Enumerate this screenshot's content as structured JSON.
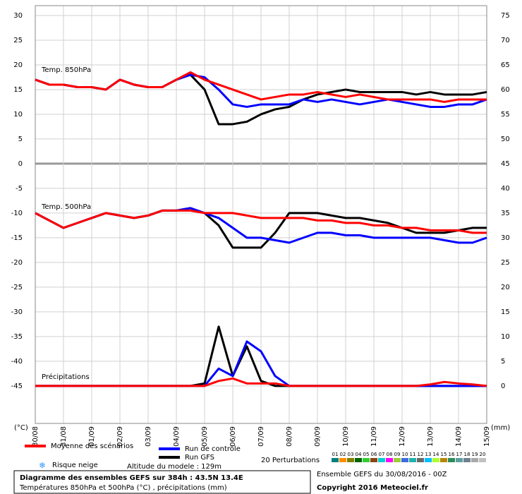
{
  "chart_data": {
    "type": "line",
    "annotations": {
      "panel_850": "Temp. 850hPa",
      "panel_500": "Temp. 500hPa",
      "panel_precip": "Précipitations",
      "y_unit": "(°C)",
      "y2_unit": "(mm)",
      "snow": "Risque neige",
      "altitude": "Altitude du modele : 129m"
    },
    "categories": [
      "30/08",
      "31/08",
      "01/09",
      "02/09",
      "03/09",
      "04/09",
      "05/09",
      "06/09",
      "07/09",
      "08/09",
      "09/09",
      "10/09",
      "11/09",
      "12/09",
      "13/09",
      "14/09",
      "15/09"
    ],
    "ylim": [
      -52.6,
      32
    ],
    "yticks": [
      30,
      25,
      20,
      15,
      10,
      5,
      0,
      -5,
      -10,
      -15,
      -20,
      -25,
      -30,
      -35,
      -40,
      -45
    ],
    "y2lim": [
      -7.6,
      77
    ],
    "y2ticks": [
      75,
      70,
      65,
      60,
      55,
      50,
      45,
      40,
      35,
      30,
      25,
      20,
      15,
      10,
      5,
      0
    ],
    "grid": true,
    "series": [
      {
        "name": "Moyenne des scénarios",
        "color": "#ff0000",
        "temp_850": [
          17,
          16,
          16,
          15.5,
          15.5,
          15,
          17,
          16,
          15.5,
          15.5,
          17,
          18.5,
          17,
          16,
          15,
          14,
          13,
          13.5,
          14,
          14,
          14.5,
          14,
          13.5,
          14,
          13.5,
          13,
          13,
          13,
          13,
          12.5,
          13,
          13,
          13
        ],
        "temp_500": [
          -10,
          -11.5,
          -13,
          -12,
          -11,
          -10,
          -10.5,
          -11,
          -10.5,
          -9.5,
          -9.5,
          -9.5,
          -10,
          -10,
          -10,
          -10.5,
          -11,
          -11,
          -11,
          -11,
          -11.5,
          -11.5,
          -12,
          -12,
          -12.5,
          -12.5,
          -13,
          -13,
          -13.5,
          -13.5,
          -13.5,
          -14,
          -14
        ],
        "precipitation": [
          0,
          0,
          0,
          0,
          0,
          0,
          0,
          0,
          0,
          0,
          0,
          0,
          0,
          1,
          1.5,
          0.5,
          0.5,
          0.5,
          0,
          0,
          0,
          0,
          0,
          0,
          0,
          0,
          0,
          0,
          0.3,
          0.8,
          0.5,
          0.3,
          0
        ]
      },
      {
        "name": "Run de contrôle",
        "color": "#0000ff",
        "temp_850": [
          17,
          16,
          16,
          15.5,
          15.5,
          15,
          17,
          16,
          15.5,
          15.5,
          17,
          18,
          17.5,
          15,
          12,
          11.5,
          12,
          12,
          12,
          13,
          12.5,
          13,
          12.5,
          12,
          12.5,
          13,
          12.5,
          12,
          11.5,
          11.5,
          12,
          12,
          13
        ],
        "temp_500": [
          -10,
          -11.5,
          -13,
          -12,
          -11,
          -10,
          -10.5,
          -11,
          -10.5,
          -9.5,
          -9.5,
          -9,
          -10,
          -11,
          -13,
          -15,
          -15,
          -15.5,
          -16,
          -15,
          -14,
          -14,
          -14.5,
          -14.5,
          -15,
          -15,
          -15,
          -15,
          -15,
          -15.5,
          -16,
          -16,
          -15
        ],
        "precipitation": [
          0,
          0,
          0,
          0,
          0,
          0,
          0,
          0,
          0,
          0,
          0,
          0,
          0,
          3.5,
          2,
          9,
          7,
          2,
          0,
          0,
          0,
          0,
          0,
          0,
          0,
          0,
          0,
          0,
          0,
          0,
          0,
          0,
          0
        ]
      },
      {
        "name": "Run GFS",
        "color": "#000000",
        "temp_850": [
          17,
          16,
          16,
          15.5,
          15.5,
          15,
          17,
          16,
          15.5,
          15.5,
          17,
          18,
          15,
          8,
          8,
          8.5,
          10,
          11,
          11.5,
          13,
          14,
          14.5,
          15,
          14.5,
          14.5,
          14.5,
          14.5,
          14,
          14.5,
          14,
          14,
          14,
          14.5
        ],
        "temp_500": [
          -10,
          -11.5,
          -13,
          -12,
          -11,
          -10,
          -10.5,
          -11,
          -10.5,
          -9.5,
          -9.5,
          -9,
          -10,
          -12.5,
          -17,
          -17,
          -17,
          -14,
          -10,
          -10,
          -10,
          -10.5,
          -11,
          -11,
          -11.5,
          -12,
          -13,
          -14,
          -14,
          -14,
          -13.5,
          -13,
          -13
        ],
        "precipitation": [
          0,
          0,
          0,
          0,
          0,
          0,
          0,
          0,
          0,
          0,
          0,
          0,
          0.5,
          12,
          2,
          8,
          1,
          0,
          0,
          0,
          0,
          0,
          0,
          0,
          0,
          0,
          0,
          0,
          0,
          0,
          0,
          0,
          0
        ]
      }
    ],
    "perturbations": {
      "label": "20 Perturbations",
      "members": [
        {
          "name": "01",
          "color": "#008080"
        },
        {
          "name": "02",
          "color": "#ff8c00"
        },
        {
          "name": "03",
          "color": "#808000"
        },
        {
          "name": "04",
          "color": "#006400"
        },
        {
          "name": "05",
          "color": "#32cd32"
        },
        {
          "name": "06",
          "color": "#8b4513"
        },
        {
          "name": "07",
          "color": "#00ced1"
        },
        {
          "name": "08",
          "color": "#ff00ff"
        },
        {
          "name": "09",
          "color": "#9acd32"
        },
        {
          "name": "10",
          "color": "#4169e1"
        },
        {
          "name": "11",
          "color": "#20b2aa"
        },
        {
          "name": "12",
          "color": "#696969"
        },
        {
          "name": "13",
          "color": "#00bfff"
        },
        {
          "name": "14",
          "color": "#adff2f"
        },
        {
          "name": "15",
          "color": "#b8860b"
        },
        {
          "name": "16",
          "color": "#2e8b57"
        },
        {
          "name": "17",
          "color": "#5f9ea0"
        },
        {
          "name": "18",
          "color": "#708090"
        },
        {
          "name": "19",
          "color": "#a9a9a9"
        },
        {
          "name": "20",
          "color": "#c0c0c0"
        }
      ]
    },
    "footer": {
      "title": "Diagramme des ensembles GEFS sur 384h : 43.5N 13.4E",
      "subtitle": "Températures 850hPa et 500hPa (°C) , précipitations (mm)",
      "run": "Ensemble GEFS du 30/08/2016 - 00Z",
      "copyright": "Copyright 2016 Meteociel.fr"
    }
  }
}
